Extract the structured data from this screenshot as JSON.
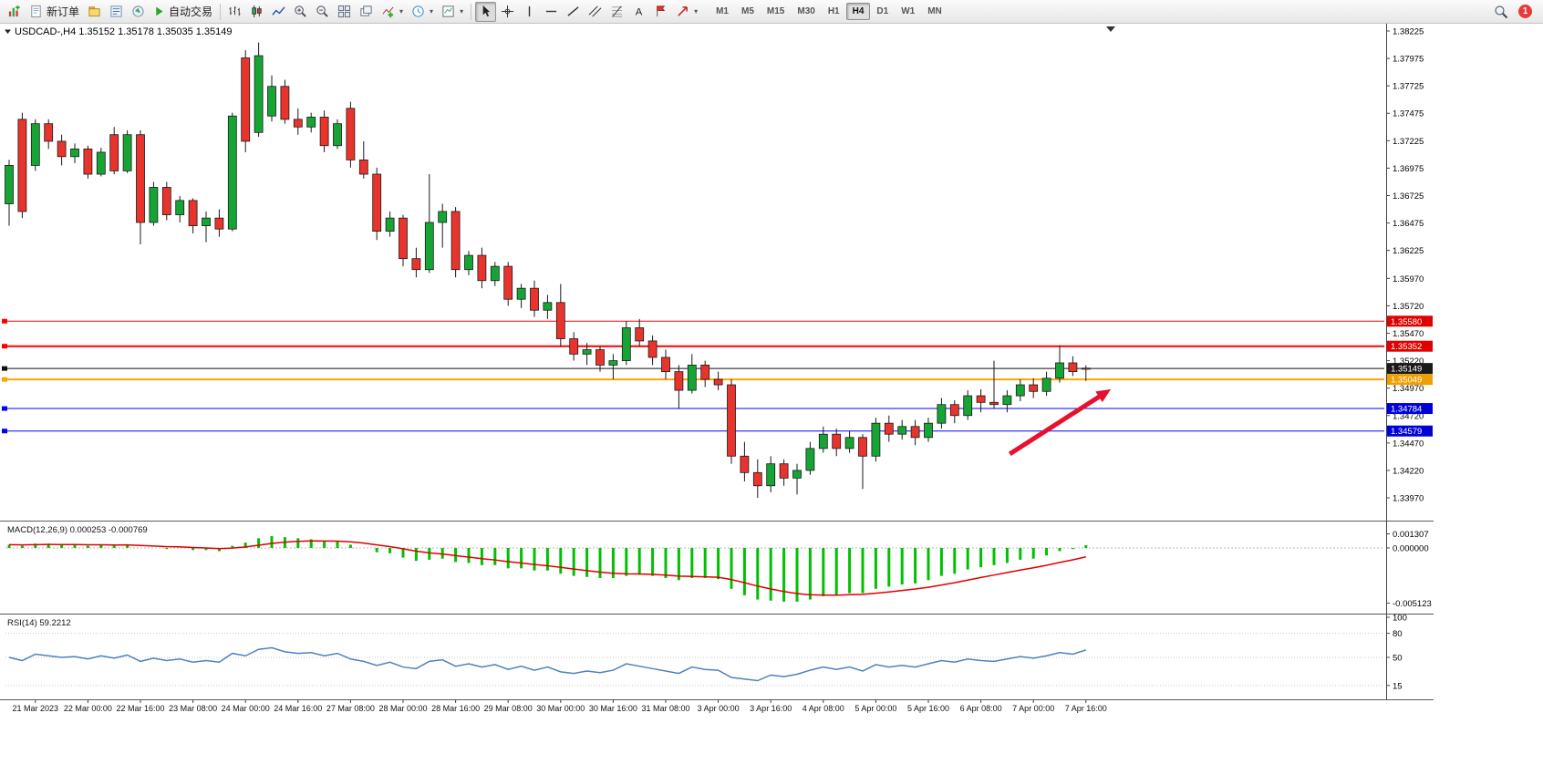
{
  "toolbar": {
    "new_order_label": "新订单",
    "auto_trading_label": "自动交易",
    "timeframes": [
      "M1",
      "M5",
      "M15",
      "M30",
      "H1",
      "H4",
      "D1",
      "W1",
      "MN"
    ],
    "active_timeframe": "H4",
    "notification_count": "1"
  },
  "chart_data": {
    "type": "candlestick",
    "symbol": "USDCAD-,H4",
    "quote": {
      "open": "1.35152",
      "high": "1.35178",
      "low": "1.35035",
      "close": "1.35149"
    },
    "colors": {
      "up": "#16a534",
      "down": "#e8342c",
      "macd_hist": "#00c000",
      "macd_signal": "#e00000",
      "rsi": "#4f81bd",
      "arrow": "#e8112d"
    },
    "y_axis": {
      "min": 1.3397,
      "max": 1.38225,
      "ticks": [
        "1.38225",
        "1.37975",
        "1.37725",
        "1.37475",
        "1.37225",
        "1.36975",
        "1.36725",
        "1.36475",
        "1.36225",
        "1.35970",
        "1.35720",
        "1.35470",
        "1.35220",
        "1.34970",
        "1.34720",
        "1.34470",
        "1.34220",
        "1.33970"
      ]
    },
    "x_axis": {
      "start_index": 2,
      "step": 4,
      "labels": [
        "21 Mar 2023",
        "22 Mar 00:00",
        "22 Mar 16:00",
        "23 Mar 08:00",
        "24 Mar 00:00",
        "24 Mar 16:00",
        "27 Mar 08:00",
        "28 Mar 00:00",
        "28 Mar 16:00",
        "29 Mar 08:00",
        "30 Mar 00:00",
        "30 Mar 16:00",
        "31 Mar 08:00",
        "3 Apr 00:00",
        "3 Apr 16:00",
        "4 Apr 08:00",
        "5 Apr 00:00",
        "5 Apr 16:00",
        "6 Apr 08:00",
        "7 Apr 00:00",
        "7 Apr 16:00"
      ]
    },
    "candles": [
      [
        1.3665,
        1.3705,
        1.3645,
        1.37
      ],
      [
        1.3742,
        1.3748,
        1.3652,
        1.3658
      ],
      [
        1.37,
        1.3742,
        1.3695,
        1.3738
      ],
      [
        1.3738,
        1.3742,
        1.3715,
        1.3722
      ],
      [
        1.3722,
        1.3728,
        1.37,
        1.3708
      ],
      [
        1.3708,
        1.372,
        1.3702,
        1.3715
      ],
      [
        1.3715,
        1.3718,
        1.3688,
        1.3692
      ],
      [
        1.3692,
        1.3716,
        1.369,
        1.3712
      ],
      [
        1.3728,
        1.3735,
        1.3692,
        1.3695
      ],
      [
        1.3695,
        1.3732,
        1.3693,
        1.3728
      ],
      [
        1.3728,
        1.3732,
        1.3628,
        1.3648
      ],
      [
        1.3648,
        1.3685,
        1.3645,
        1.368
      ],
      [
        1.368,
        1.3685,
        1.365,
        1.3655
      ],
      [
        1.3655,
        1.3672,
        1.3648,
        1.3668
      ],
      [
        1.3668,
        1.367,
        1.3638,
        1.3645
      ],
      [
        1.3645,
        1.3658,
        1.363,
        1.3652
      ],
      [
        1.3652,
        1.366,
        1.3635,
        1.3642
      ],
      [
        1.3642,
        1.3748,
        1.364,
        1.3745
      ],
      [
        1.3798,
        1.3805,
        1.3712,
        1.3722
      ],
      [
        1.373,
        1.3812,
        1.3726,
        1.38
      ],
      [
        1.3745,
        1.3782,
        1.374,
        1.3772
      ],
      [
        1.3772,
        1.3778,
        1.3738,
        1.3742
      ],
      [
        1.3742,
        1.3752,
        1.3728,
        1.3735
      ],
      [
        1.3735,
        1.3748,
        1.373,
        1.3744
      ],
      [
        1.3744,
        1.375,
        1.3712,
        1.3718
      ],
      [
        1.3718,
        1.3742,
        1.3715,
        1.3738
      ],
      [
        1.3752,
        1.3758,
        1.3698,
        1.3705
      ],
      [
        1.3705,
        1.3722,
        1.3688,
        1.3692
      ],
      [
        1.3692,
        1.3698,
        1.3632,
        1.364
      ],
      [
        1.364,
        1.3658,
        1.3635,
        1.3652
      ],
      [
        1.3652,
        1.3655,
        1.3608,
        1.3615
      ],
      [
        1.3615,
        1.3625,
        1.3598,
        1.3605
      ],
      [
        1.3605,
        1.3692,
        1.3602,
        1.3648
      ],
      [
        1.3648,
        1.3665,
        1.3625,
        1.3658
      ],
      [
        1.3658,
        1.3662,
        1.3598,
        1.3605
      ],
      [
        1.3605,
        1.3622,
        1.36,
        1.3618
      ],
      [
        1.3618,
        1.3625,
        1.3588,
        1.3595
      ],
      [
        1.3595,
        1.3612,
        1.359,
        1.3608
      ],
      [
        1.3608,
        1.3612,
        1.3572,
        1.3578
      ],
      [
        1.3578,
        1.3592,
        1.357,
        1.3588
      ],
      [
        1.3588,
        1.3595,
        1.3562,
        1.3568
      ],
      [
        1.3568,
        1.3582,
        1.356,
        1.3575
      ],
      [
        1.3575,
        1.3592,
        1.3535,
        1.3542
      ],
      [
        1.3542,
        1.3548,
        1.3522,
        1.3528
      ],
      [
        1.3528,
        1.3538,
        1.3518,
        1.3532
      ],
      [
        1.3532,
        1.3535,
        1.3512,
        1.3518
      ],
      [
        1.3518,
        1.3528,
        1.3505,
        1.3522
      ],
      [
        1.3522,
        1.3558,
        1.3518,
        1.3552
      ],
      [
        1.3552,
        1.356,
        1.3535,
        1.354
      ],
      [
        1.354,
        1.3545,
        1.3518,
        1.3525
      ],
      [
        1.3525,
        1.3532,
        1.3505,
        1.3512
      ],
      [
        1.3512,
        1.3518,
        1.3478,
        1.3495
      ],
      [
        1.3495,
        1.3528,
        1.3492,
        1.3518
      ],
      [
        1.3518,
        1.3522,
        1.3498,
        1.3505
      ],
      [
        1.3505,
        1.3512,
        1.3495,
        1.35
      ],
      [
        1.35,
        1.3505,
        1.3428,
        1.3435
      ],
      [
        1.3435,
        1.3448,
        1.3412,
        1.342
      ],
      [
        1.342,
        1.3432,
        1.3397,
        1.3408
      ],
      [
        1.3408,
        1.3435,
        1.3402,
        1.3428
      ],
      [
        1.3428,
        1.3432,
        1.3408,
        1.3415
      ],
      [
        1.3415,
        1.3428,
        1.34,
        1.3422
      ],
      [
        1.3422,
        1.3448,
        1.3418,
        1.3442
      ],
      [
        1.3442,
        1.3462,
        1.3438,
        1.3455
      ],
      [
        1.3455,
        1.346,
        1.3435,
        1.3442
      ],
      [
        1.3442,
        1.3458,
        1.3438,
        1.3452
      ],
      [
        1.3452,
        1.3455,
        1.3405,
        1.3435
      ],
      [
        1.3435,
        1.347,
        1.343,
        1.3465
      ],
      [
        1.3465,
        1.3472,
        1.3448,
        1.3455
      ],
      [
        1.3455,
        1.3468,
        1.345,
        1.3462
      ],
      [
        1.3462,
        1.3468,
        1.3445,
        1.3452
      ],
      [
        1.3452,
        1.347,
        1.3448,
        1.3465
      ],
      [
        1.3465,
        1.3488,
        1.346,
        1.3482
      ],
      [
        1.3482,
        1.3486,
        1.3465,
        1.3472
      ],
      [
        1.3472,
        1.3495,
        1.3468,
        1.349
      ],
      [
        1.349,
        1.3496,
        1.3475,
        1.3484
      ],
      [
        1.3484,
        1.3522,
        1.3478,
        1.3482
      ],
      [
        1.3482,
        1.3495,
        1.3475,
        1.349
      ],
      [
        1.349,
        1.3505,
        1.3485,
        1.35
      ],
      [
        1.35,
        1.3506,
        1.3488,
        1.3494
      ],
      [
        1.3494,
        1.3512,
        1.349,
        1.3506
      ],
      [
        1.3506,
        1.3536,
        1.3502,
        1.352
      ],
      [
        1.352,
        1.3526,
        1.3508,
        1.3512
      ],
      [
        1.35152,
        1.35178,
        1.35035,
        1.35149
      ]
    ],
    "hlines": [
      {
        "price": 1.3558,
        "color": "#ff0000",
        "width": 1,
        "badge": "1.35580",
        "badge_color": "#e00000"
      },
      {
        "price": 1.35352,
        "color": "#ff0000",
        "width": 2,
        "badge": "1.35352",
        "badge_color": "#e00000"
      },
      {
        "price": 1.35149,
        "color": "#111111",
        "width": 1,
        "badge": "1.35149",
        "badge_color": "#1a1a1a"
      },
      {
        "price": 1.35049,
        "color": "#ffa500",
        "width": 2,
        "badge": "1.35049",
        "badge_color": "#ef9f00"
      },
      {
        "price": 1.34784,
        "color": "#0000ff",
        "width": 1,
        "badge": "1.34784",
        "badge_color": "#0000d8"
      },
      {
        "price": 1.34579,
        "color": "#0000ff",
        "width": 1,
        "badge": "1.34579",
        "badge_color": "#0000d8"
      }
    ],
    "arrow": {
      "from": {
        "index": 76.2,
        "price": 1.3437
      },
      "to": {
        "index": 83.9,
        "price": 1.3496
      },
      "color": "#e8112d"
    },
    "macd": {
      "label": "MACD(12,26,9)",
      "value_main": "0.000253",
      "value_signal": "-0.000769",
      "range": [
        -0.0056,
        0.0022
      ],
      "scale_labels": [
        {
          "text": "0.001307",
          "value": 0.001307
        },
        {
          "text": "0.000000",
          "value": 0.0
        },
        {
          "text": "-0.005123",
          "value": -0.005123
        }
      ],
      "histogram": [
        0.0003,
        0.0002,
        0.0004,
        0.0004,
        0.0003,
        0.0003,
        0.0002,
        0.0003,
        0.0002,
        0.0003,
        0.0,
        0.0,
        -0.0001,
        0.0,
        -0.0002,
        -0.0002,
        -0.0003,
        0.0002,
        0.0005,
        0.0009,
        0.0011,
        0.001,
        0.0009,
        0.0008,
        0.0006,
        0.0006,
        0.0003,
        0.0,
        -0.0004,
        -0.0005,
        -0.0009,
        -0.0012,
        -0.0011,
        -0.001,
        -0.0013,
        -0.0014,
        -0.0016,
        -0.0016,
        -0.0019,
        -0.0019,
        -0.0021,
        -0.0021,
        -0.0024,
        -0.0026,
        -0.0027,
        -0.0028,
        -0.0028,
        -0.0026,
        -0.0025,
        -0.0026,
        -0.0028,
        -0.003,
        -0.0028,
        -0.0028,
        -0.0029,
        -0.0038,
        -0.0044,
        -0.0048,
        -0.0049,
        -0.005,
        -0.005,
        -0.0048,
        -0.0045,
        -0.0044,
        -0.0042,
        -0.0042,
        -0.0038,
        -0.0036,
        -0.0034,
        -0.0033,
        -0.003,
        -0.0026,
        -0.0024,
        -0.002,
        -0.0018,
        -0.0016,
        -0.0014,
        -0.0011,
        -0.001,
        -0.0007,
        -0.0003,
        -0.0001,
        0.000253
      ]
    },
    "rsi": {
      "label": "RSI(14)",
      "value": "59.2212",
      "range": [
        0,
        100
      ],
      "levels": [
        {
          "text": "100",
          "value": 100
        },
        {
          "text": "80",
          "value": 80
        },
        {
          "text": "50",
          "value": 50
        },
        {
          "text": "15",
          "value": 15
        }
      ],
      "values": [
        50,
        46,
        54,
        52,
        50,
        51,
        48,
        52,
        49,
        53,
        45,
        49,
        46,
        48,
        44,
        46,
        44,
        55,
        52,
        60,
        62,
        57,
        55,
        56,
        52,
        55,
        48,
        45,
        40,
        44,
        38,
        36,
        45,
        47,
        39,
        42,
        38,
        41,
        35,
        39,
        34,
        38,
        32,
        30,
        33,
        31,
        34,
        42,
        39,
        36,
        33,
        30,
        38,
        35,
        34,
        25,
        23,
        21,
        28,
        26,
        29,
        34,
        38,
        35,
        38,
        33,
        41,
        38,
        40,
        38,
        42,
        46,
        44,
        48,
        46,
        45,
        48,
        51,
        49,
        52,
        56,
        54,
        59.2212
      ]
    }
  }
}
